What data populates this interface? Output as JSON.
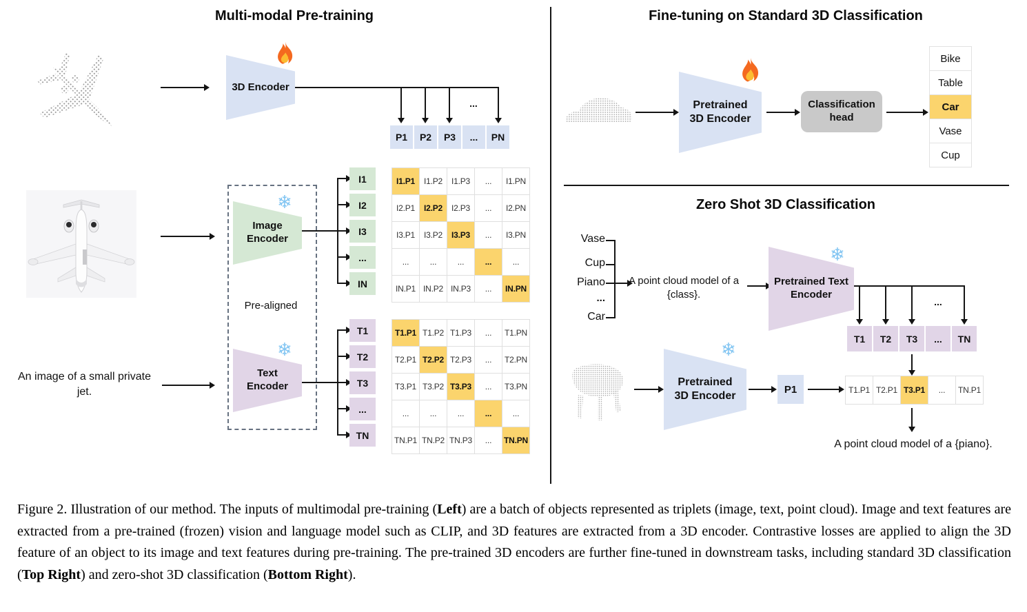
{
  "colors": {
    "accent_blue": "#d9e2f3",
    "accent_green": "#d5e8d4",
    "accent_purple": "#e1d5e7",
    "highlight_orange": "#fbd46d",
    "head_gray": "#c9c9c9"
  },
  "figure": {
    "pretrain": {
      "title": "Multi-modal Pre-training",
      "encoder_label": "3D Encoder",
      "image_encoder_label": "Image Encoder",
      "text_encoder_label": "Text Encoder",
      "prealigned_label": "Pre-aligned",
      "text_input": "An image of a small private jet.",
      "dots": "...",
      "p_row": [
        "P1",
        "P2",
        "P3",
        "...",
        "PN"
      ],
      "i_labels": [
        "I1",
        "I2",
        "I3",
        "...",
        "IN"
      ],
      "i_matrix": [
        [
          "I1.P1",
          "I1.P2",
          "I1.P3",
          "...",
          "I1.PN"
        ],
        [
          "I2.P1",
          "I2.P2",
          "I2.P3",
          "...",
          "I2.PN"
        ],
        [
          "I3.P1",
          "I3.P2",
          "I3.P3",
          "...",
          "I3.PN"
        ],
        [
          "...",
          "...",
          "...",
          "...",
          "..."
        ],
        [
          "IN.P1",
          "IN.P2",
          "IN.P3",
          "...",
          "IN.PN"
        ]
      ],
      "t_labels": [
        "T1",
        "T2",
        "T3",
        "...",
        "TN"
      ],
      "t_matrix": [
        [
          "T1.P1",
          "T1.P2",
          "T1.P3",
          "...",
          "T1.PN"
        ],
        [
          "T2.P1",
          "T2.P2",
          "T2.P3",
          "...",
          "T2.PN"
        ],
        [
          "T3.P1",
          "T3.P2",
          "T3.P3",
          "...",
          "T3.PN"
        ],
        [
          "...",
          "...",
          "...",
          "...",
          "..."
        ],
        [
          "TN.P1",
          "TN.P2",
          "TN.P3",
          "...",
          "TN.PN"
        ]
      ]
    },
    "finetune": {
      "title": "Fine-tuning on Standard 3D Classification",
      "encoder_label": "Pretrained 3D Encoder",
      "head_label": "Classification head",
      "classes": [
        "Bike",
        "Table",
        "Car",
        "Vase",
        "Cup"
      ],
      "highlight_index": 2
    },
    "zeroshot": {
      "title": "Zero Shot 3D Classification",
      "classes": [
        "Vase",
        "Cup",
        "Piano",
        "...",
        "Car"
      ],
      "prompt": "A point cloud model of a {class}.",
      "text_encoder_label": "Pretrained Text Encoder",
      "encoder_label": "Pretrained 3D Encoder",
      "p1_label": "P1",
      "dots": "...",
      "t_row": [
        "T1",
        "T2",
        "T3",
        "...",
        "TN"
      ],
      "sim_row": [
        "T1.P1",
        "T2.P1",
        "T3.P1",
        "...",
        "TN.P1"
      ],
      "sim_highlight_index": 2,
      "result_text": "A point cloud model of a {piano}."
    }
  },
  "icons": {
    "snowflake_glyph": "❄"
  },
  "caption": {
    "segments": [
      {
        "text": "Figure 2. Illustration of our method.  The inputs of multimodal pre-training (",
        "bold": false
      },
      {
        "text": "Left",
        "bold": true
      },
      {
        "text": ") are a batch of objects represented as triplets (image, text, point cloud).  Image and text features are extracted from a pre-trained (frozen) vision and language model such as CLIP, and 3D features are extracted from a 3D encoder.  Contrastive losses are applied to align the 3D feature of an object to its image and text features during pre-training.  The pre-trained 3D encoders are further fine-tuned in downstream tasks, including standard 3D classification (",
        "bold": false
      },
      {
        "text": "Top Right",
        "bold": true
      },
      {
        "text": ") and zero-shot 3D classification (",
        "bold": false
      },
      {
        "text": "Bottom Right",
        "bold": true
      },
      {
        "text": ").",
        "bold": false
      }
    ]
  }
}
